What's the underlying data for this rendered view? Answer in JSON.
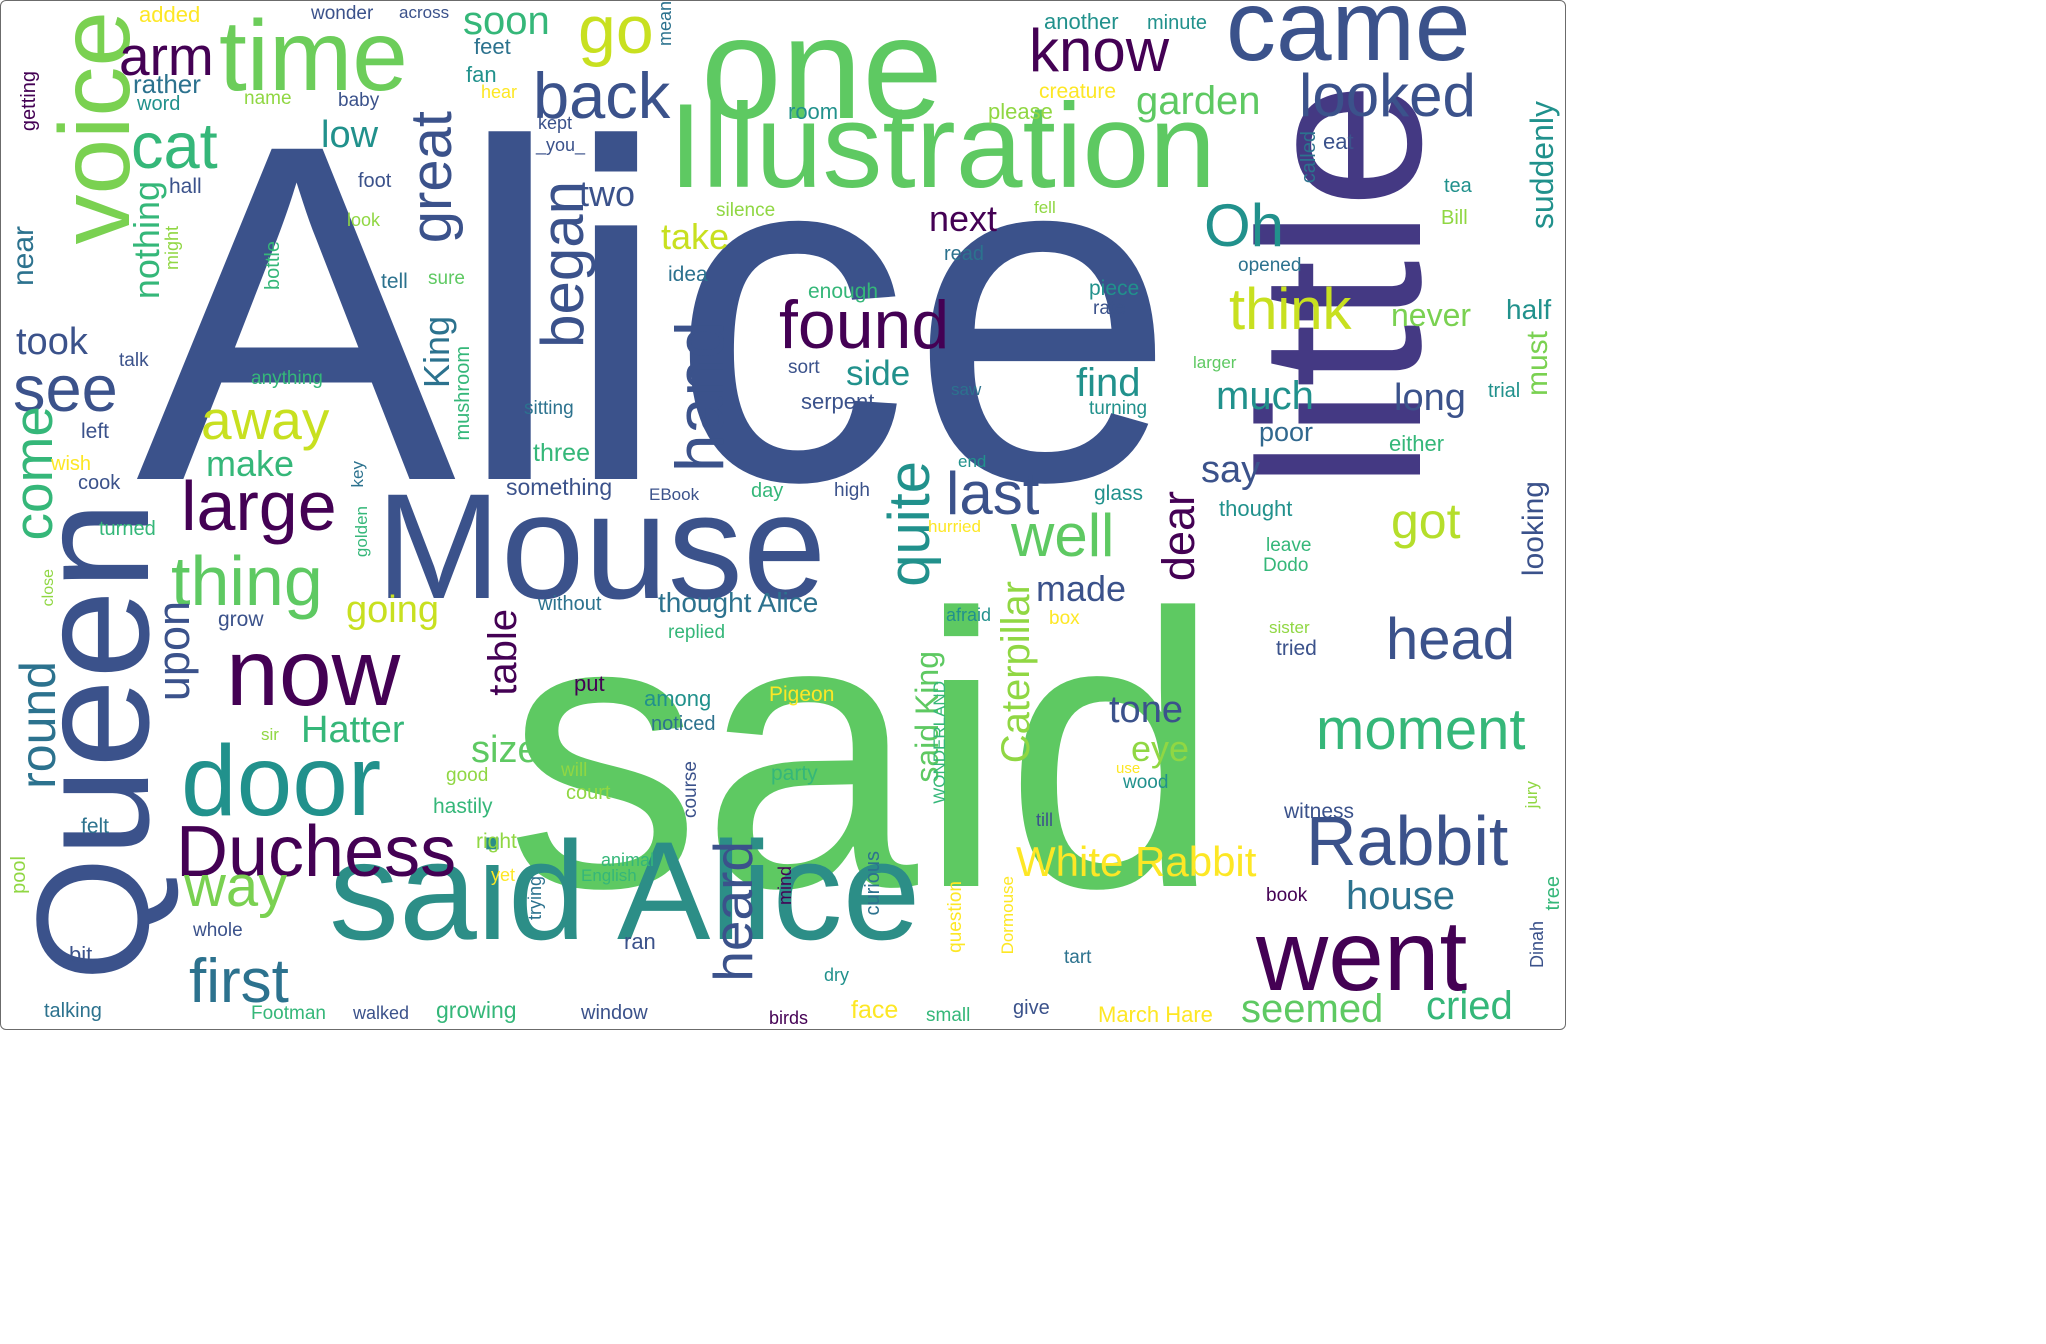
{
  "palette": [
    "#3b528b",
    "#21918c",
    "#5ec962",
    "#fde725",
    "#440154",
    "#31688e",
    "#35b779",
    "#90d743",
    "#443983",
    "#2c728e"
  ],
  "words": [
    {
      "text": "Alice",
      "color": "#3b528b"
    },
    {
      "text": "said",
      "color": "#5ec962"
    },
    {
      "text": "little",
      "color": "#443983"
    },
    {
      "text": "Mouse",
      "color": "#3b528b"
    },
    {
      "text": "said Alice",
      "color": "#2c8e87"
    },
    {
      "text": "one",
      "color": "#5ec962"
    },
    {
      "text": "Illustration",
      "color": "#5ec962"
    },
    {
      "text": "Queen",
      "color": "#3b528b"
    },
    {
      "text": "time",
      "color": "#6ccd5a"
    },
    {
      "text": "came",
      "color": "#3b528b"
    },
    {
      "text": "voice",
      "color": "#7ad151"
    },
    {
      "text": "know",
      "color": "#440154"
    },
    {
      "text": "arm",
      "color": "#440154"
    },
    {
      "text": "go",
      "color": "#c8e020"
    },
    {
      "text": "back",
      "color": "#3b528b"
    },
    {
      "text": "looked",
      "color": "#3b528b"
    },
    {
      "text": "cat",
      "color": "#35b779"
    },
    {
      "text": "now",
      "color": "#440154"
    },
    {
      "text": "door",
      "color": "#21918c"
    },
    {
      "text": "went",
      "color": "#440154"
    },
    {
      "text": "Rabbit",
      "color": "#3b528b"
    },
    {
      "text": "Duchess",
      "color": "#440154"
    },
    {
      "text": "found",
      "color": "#440154"
    },
    {
      "text": "large",
      "color": "#440154"
    },
    {
      "text": "thing",
      "color": "#5ec962"
    },
    {
      "text": "way",
      "color": "#7ad151"
    },
    {
      "text": "first",
      "color": "#2c728e"
    },
    {
      "text": "head",
      "color": "#3b528b"
    },
    {
      "text": "moment",
      "color": "#35b779"
    },
    {
      "text": "well",
      "color": "#5ec962"
    },
    {
      "text": "Oh",
      "color": "#21918c"
    },
    {
      "text": "think",
      "color": "#c8e020"
    },
    {
      "text": "last",
      "color": "#3b528b"
    },
    {
      "text": "got",
      "color": "#b5de2b"
    },
    {
      "text": "away",
      "color": "#c8e020"
    },
    {
      "text": "see",
      "color": "#3b528b"
    },
    {
      "text": "hand",
      "color": "#3b528b"
    },
    {
      "text": "began",
      "color": "#3b528b"
    },
    {
      "text": "great",
      "color": "#3b528b"
    },
    {
      "text": "quite",
      "color": "#21918c"
    },
    {
      "text": "White Rabbit",
      "color": "#fde725"
    },
    {
      "text": "house",
      "color": "#2c728e"
    },
    {
      "text": "cried",
      "color": "#35b779"
    },
    {
      "text": "seemed",
      "color": "#5ec962"
    },
    {
      "text": "heard",
      "color": "#3b528b"
    },
    {
      "text": "come",
      "color": "#35b779"
    },
    {
      "text": "round",
      "color": "#2c728e"
    },
    {
      "text": "upon",
      "color": "#3b528b"
    },
    {
      "text": "table",
      "color": "#440154"
    },
    {
      "text": "Hatter",
      "color": "#35b779"
    },
    {
      "text": "size",
      "color": "#5ec962"
    },
    {
      "text": "tone",
      "color": "#3b528b"
    },
    {
      "text": "eye",
      "color": "#90d743"
    },
    {
      "text": "made",
      "color": "#3b528b"
    },
    {
      "text": "dear",
      "color": "#440154"
    },
    {
      "text": "next",
      "color": "#440154"
    },
    {
      "text": "take",
      "color": "#c8e020"
    },
    {
      "text": "two",
      "color": "#3b528b"
    },
    {
      "text": "garden",
      "color": "#5ec962"
    },
    {
      "text": "soon",
      "color": "#35b779"
    },
    {
      "text": "find",
      "color": "#21918c"
    },
    {
      "text": "much",
      "color": "#21918c"
    },
    {
      "text": "long",
      "color": "#3b528b"
    },
    {
      "text": "never",
      "color": "#7ad151"
    },
    {
      "text": "must",
      "color": "#7ad151"
    },
    {
      "text": "looking",
      "color": "#3b528b"
    },
    {
      "text": "say",
      "color": "#3b528b"
    },
    {
      "text": "side",
      "color": "#21918c"
    },
    {
      "text": "make",
      "color": "#35b779"
    },
    {
      "text": "going",
      "color": "#c8e020"
    },
    {
      "text": "King",
      "color": "#2c728e"
    },
    {
      "text": "took",
      "color": "#3b528b"
    },
    {
      "text": "low",
      "color": "#21918c"
    },
    {
      "text": "nothing",
      "color": "#35b779"
    },
    {
      "text": "suddenly",
      "color": "#21918c"
    },
    {
      "text": "said King",
      "color": "#5ec962"
    },
    {
      "text": "Caterpillar",
      "color": "#90d743"
    },
    {
      "text": "thought Alice",
      "color": "#2c728e"
    },
    {
      "text": "near",
      "color": "#2c728e"
    },
    {
      "text": "half",
      "color": "#21918c"
    },
    {
      "text": "poor",
      "color": "#31688e"
    },
    {
      "text": "added",
      "color": "#fde725"
    },
    {
      "text": "wonder",
      "color": "#3b528b"
    },
    {
      "text": "across",
      "color": "#3b528b"
    },
    {
      "text": "mean",
      "color": "#2c728e"
    },
    {
      "text": "another",
      "color": "#21918c"
    },
    {
      "text": "minute",
      "color": "#21918c"
    },
    {
      "text": "feet",
      "color": "#2c728e"
    },
    {
      "text": "fan",
      "color": "#21918c"
    },
    {
      "text": "rather",
      "color": "#2c728e"
    },
    {
      "text": "word",
      "color": "#21918c"
    },
    {
      "text": "name",
      "color": "#90d743"
    },
    {
      "text": "baby",
      "color": "#3b528b"
    },
    {
      "text": "hear",
      "color": "#fde725"
    },
    {
      "text": "creature",
      "color": "#fde725"
    },
    {
      "text": "room",
      "color": "#21918c"
    },
    {
      "text": "please",
      "color": "#90d743"
    },
    {
      "text": "getting",
      "color": "#440154"
    },
    {
      "text": "kept",
      "color": "#3b528b"
    },
    {
      "text": "_you_",
      "color": "#3b528b"
    },
    {
      "text": "called",
      "color": "#2c728e"
    },
    {
      "text": "eat",
      "color": "#3b528b"
    },
    {
      "text": "hall",
      "color": "#3b528b"
    },
    {
      "text": "foot",
      "color": "#3b528b"
    },
    {
      "text": "tea",
      "color": "#21918c"
    },
    {
      "text": "Bill",
      "color": "#90d743"
    },
    {
      "text": "look",
      "color": "#90d743"
    },
    {
      "text": "silence",
      "color": "#90d743"
    },
    {
      "text": "fell",
      "color": "#90d743"
    },
    {
      "text": "might",
      "color": "#90d743"
    },
    {
      "text": "read",
      "color": "#2c728e"
    },
    {
      "text": "opened",
      "color": "#2c728e"
    },
    {
      "text": "idea",
      "color": "#2c728e"
    },
    {
      "text": "bottle",
      "color": "#35b779"
    },
    {
      "text": "tell",
      "color": "#2c728e"
    },
    {
      "text": "sure",
      "color": "#5ec962"
    },
    {
      "text": "enough",
      "color": "#35b779"
    },
    {
      "text": "piece",
      "color": "#21918c"
    },
    {
      "text": "rate",
      "color": "#3b528b"
    },
    {
      "text": "talk",
      "color": "#3b528b"
    },
    {
      "text": "anything",
      "color": "#35b779"
    },
    {
      "text": "sort",
      "color": "#3b528b"
    },
    {
      "text": "larger",
      "color": "#5ec962"
    },
    {
      "text": "trial",
      "color": "#21918c"
    },
    {
      "text": "serpent",
      "color": "#3b528b"
    },
    {
      "text": "saw",
      "color": "#2c728e"
    },
    {
      "text": "turning",
      "color": "#21918c"
    },
    {
      "text": "sitting",
      "color": "#2c728e"
    },
    {
      "text": "mushroom",
      "color": "#35b779"
    },
    {
      "text": "left",
      "color": "#3b528b"
    },
    {
      "text": "either",
      "color": "#35b779"
    },
    {
      "text": "wish",
      "color": "#fde725"
    },
    {
      "text": "three",
      "color": "#35b779"
    },
    {
      "text": "end",
      "color": "#21918c"
    },
    {
      "text": "cook",
      "color": "#3b528b"
    },
    {
      "text": "key",
      "color": "#2c728e"
    },
    {
      "text": "something",
      "color": "#3b528b"
    },
    {
      "text": "EBook",
      "color": "#3b528b"
    },
    {
      "text": "day",
      "color": "#35b779"
    },
    {
      "text": "high",
      "color": "#3b528b"
    },
    {
      "text": "glass",
      "color": "#21918c"
    },
    {
      "text": "thought",
      "color": "#21918c"
    },
    {
      "text": "turned",
      "color": "#35b779"
    },
    {
      "text": "golden",
      "color": "#35b779"
    },
    {
      "text": "hurried",
      "color": "#fde725"
    },
    {
      "text": "leave",
      "color": "#35b779"
    },
    {
      "text": "Dodo",
      "color": "#35b779"
    },
    {
      "text": "close",
      "color": "#90d743"
    },
    {
      "text": "grow",
      "color": "#3b528b"
    },
    {
      "text": "without",
      "color": "#2c728e"
    },
    {
      "text": "replied",
      "color": "#35b779"
    },
    {
      "text": "afraid",
      "color": "#21918c"
    },
    {
      "text": "box",
      "color": "#fde725"
    },
    {
      "text": "sister",
      "color": "#90d743"
    },
    {
      "text": "tried",
      "color": "#3b528b"
    },
    {
      "text": "put",
      "color": "#440154"
    },
    {
      "text": "among",
      "color": "#21918c"
    },
    {
      "text": "Pigeon",
      "color": "#fde725"
    },
    {
      "text": "noticed",
      "color": "#2c728e"
    },
    {
      "text": "WONDERLAND",
      "color": "#35b779"
    },
    {
      "text": "sir",
      "color": "#90d743"
    },
    {
      "text": "good",
      "color": "#90d743"
    },
    {
      "text": "will",
      "color": "#90d743"
    },
    {
      "text": "party",
      "color": "#35b779"
    },
    {
      "text": "use",
      "color": "#fde725"
    },
    {
      "text": "wood",
      "color": "#21918c"
    },
    {
      "text": "court",
      "color": "#90d743"
    },
    {
      "text": "hastily",
      "color": "#35b779"
    },
    {
      "text": "course",
      "color": "#3b528b"
    },
    {
      "text": "witness",
      "color": "#3b528b"
    },
    {
      "text": "jury",
      "color": "#90d743"
    },
    {
      "text": "felt",
      "color": "#2c728e"
    },
    {
      "text": "till",
      "color": "#3b528b"
    },
    {
      "text": "right",
      "color": "#90d743"
    },
    {
      "text": "pool",
      "color": "#90d743"
    },
    {
      "text": "animal",
      "color": "#35b779"
    },
    {
      "text": "English",
      "color": "#35b779"
    },
    {
      "text": "yet",
      "color": "#fde725"
    },
    {
      "text": "mind",
      "color": "#440154"
    },
    {
      "text": "curious",
      "color": "#2c728e"
    },
    {
      "text": "trying",
      "color": "#2c728e"
    },
    {
      "text": "book",
      "color": "#440154"
    },
    {
      "text": "tree",
      "color": "#35b779"
    },
    {
      "text": "question",
      "color": "#fde725"
    },
    {
      "text": "whole",
      "color": "#3b528b"
    },
    {
      "text": "bit",
      "color": "#3b528b"
    },
    {
      "text": "ran",
      "color": "#3b528b"
    },
    {
      "text": "dry",
      "color": "#21918c"
    },
    {
      "text": "tart",
      "color": "#2c728e"
    },
    {
      "text": "Dormouse",
      "color": "#fde725"
    },
    {
      "text": "Dinah",
      "color": "#3b528b"
    },
    {
      "text": "talking",
      "color": "#2c728e"
    },
    {
      "text": "Footman",
      "color": "#35b779"
    },
    {
      "text": "walked",
      "color": "#3b528b"
    },
    {
      "text": "growing",
      "color": "#35b779"
    },
    {
      "text": "window",
      "color": "#3b528b"
    },
    {
      "text": "birds",
      "color": "#440154"
    },
    {
      "text": "face",
      "color": "#fde725"
    },
    {
      "text": "small",
      "color": "#35b779"
    },
    {
      "text": "give",
      "color": "#3b528b"
    },
    {
      "text": "March Hare",
      "color": "#fde725"
    }
  ]
}
